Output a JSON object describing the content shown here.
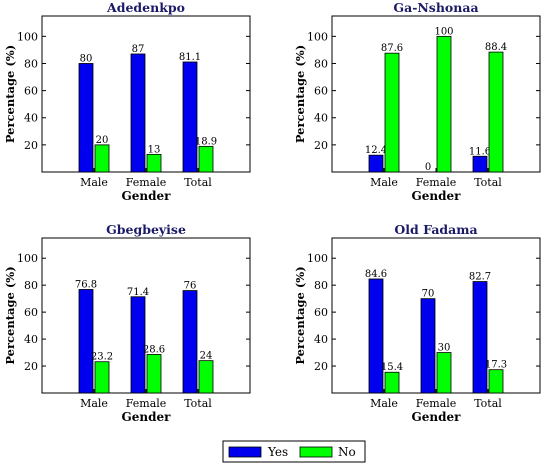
{
  "colors": {
    "yes": "#0000ee",
    "no": "#00ff00"
  },
  "legend": {
    "items": [
      {
        "label": "Yes",
        "color": "#0000ee"
      },
      {
        "label": "No",
        "color": "#00ff00"
      }
    ]
  },
  "chart_data": [
    {
      "type": "bar",
      "title": "Adedenkpo",
      "categories": [
        "Male",
        "Female",
        "Total"
      ],
      "series": [
        {
          "name": "Yes",
          "values": [
            80,
            87,
            81.1
          ]
        },
        {
          "name": "No",
          "values": [
            20,
            13,
            18.9
          ]
        }
      ],
      "data_labels": [
        [
          "80",
          "87",
          "81.1"
        ],
        [
          "20",
          "13",
          "18.9"
        ]
      ],
      "xlabel": "Gender",
      "ylabel": "Percentage (%)",
      "ylim": [
        0,
        115
      ],
      "yticks": [
        "20",
        "40",
        "60",
        "80",
        "100"
      ],
      "grid": false
    },
    {
      "type": "bar",
      "title": "Ga-Nshonaa",
      "categories": [
        "Male",
        "Female",
        "Total"
      ],
      "series": [
        {
          "name": "Yes",
          "values": [
            12.4,
            0,
            11.6
          ]
        },
        {
          "name": "No",
          "values": [
            87.6,
            100,
            88.4
          ]
        }
      ],
      "data_labels": [
        [
          "12.4",
          "0",
          "11.6"
        ],
        [
          "87.6",
          "100",
          "88.4"
        ]
      ],
      "xlabel": "Gender",
      "ylabel": "Percentage (%)",
      "ylim": [
        0,
        115
      ],
      "yticks": [
        "20",
        "40",
        "60",
        "80",
        "100"
      ],
      "grid": false
    },
    {
      "type": "bar",
      "title": "Gbegbeyise",
      "categories": [
        "Male",
        "Female",
        "Total"
      ],
      "series": [
        {
          "name": "Yes",
          "values": [
            76.8,
            71.4,
            76
          ]
        },
        {
          "name": "No",
          "values": [
            23.2,
            28.6,
            24
          ]
        }
      ],
      "data_labels": [
        [
          "76.8",
          "71.4",
          "76"
        ],
        [
          "23.2",
          "28.6",
          "24"
        ]
      ],
      "xlabel": "Gender",
      "ylabel": "Percentage (%)",
      "ylim": [
        0,
        115
      ],
      "yticks": [
        "20",
        "40",
        "60",
        "80",
        "100"
      ],
      "grid": false
    },
    {
      "type": "bar",
      "title": "Old Fadama",
      "categories": [
        "Male",
        "Female",
        "Total"
      ],
      "series": [
        {
          "name": "Yes",
          "values": [
            84.6,
            70,
            82.7
          ]
        },
        {
          "name": "No",
          "values": [
            15.4,
            30,
            17.3
          ]
        }
      ],
      "data_labels": [
        [
          "84.6",
          "70",
          "82.7"
        ],
        [
          "15.4",
          "30",
          "17.3"
        ]
      ],
      "xlabel": "Gender",
      "ylabel": "Percentage (%)",
      "ylim": [
        0,
        115
      ],
      "yticks": [
        "20",
        "40",
        "60",
        "80",
        "100"
      ],
      "grid": false
    }
  ]
}
